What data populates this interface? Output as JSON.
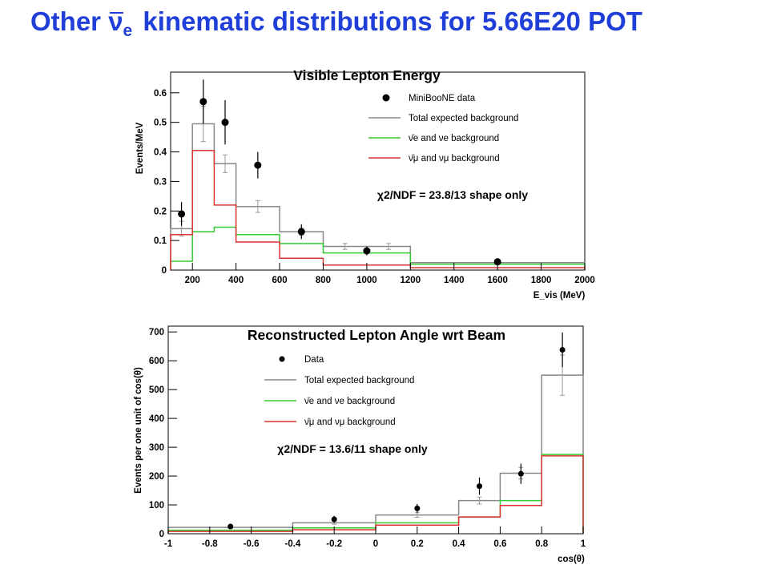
{
  "title": {
    "prefix": "Other ",
    "particle": "ν",
    "particle_sub": "e",
    "suffix": " kinematic distributions for 5.66E20 POT"
  },
  "chart_data": [
    {
      "type": "line",
      "title": "Visible Lepton Energy",
      "xlabel": "E_vis (MeV)",
      "ylabel": "Events/MeV",
      "xlim": [
        100,
        2000
      ],
      "ylim": [
        0,
        0.67
      ],
      "x_ticks": [
        200,
        400,
        600,
        800,
        1000,
        1200,
        1400,
        1600,
        1800,
        2000
      ],
      "y_ticks": [
        0,
        0.1,
        0.2,
        0.3,
        0.4,
        0.5,
        0.6
      ],
      "grid": false,
      "legend_position": "top-right",
      "annotation": "χ2/NDF = 23.8/13 shape only",
      "bin_edges": [
        100,
        200,
        300,
        400,
        600,
        800,
        1000,
        1200,
        2000
      ],
      "series": [
        {
          "name": "Total expected background",
          "style": "histogram",
          "color": "#888888",
          "values": [
            0.14,
            0.495,
            0.36,
            0.215,
            0.13,
            0.08,
            0.08,
            0.025
          ],
          "errors": [
            0.025,
            0.06,
            0.03,
            0.02,
            0.012,
            0.01,
            0.01,
            0.004
          ]
        },
        {
          "name": "ν̄e and νe background",
          "style": "histogram",
          "color": "#33cc33",
          "values": [
            0.03,
            0.13,
            0.145,
            0.12,
            0.09,
            0.058,
            0.058,
            0.02
          ]
        },
        {
          "name": "ν̄μ and νμ background",
          "style": "histogram",
          "color": "#dd3333",
          "values": [
            0.12,
            0.405,
            0.22,
            0.095,
            0.04,
            0.017,
            0.017,
            0.008
          ]
        },
        {
          "name": "MiniBooNE data",
          "style": "points",
          "color": "#000000",
          "x": [
            150,
            250,
            350,
            500,
            700,
            1000,
            1600
          ],
          "y": [
            0.19,
            0.57,
            0.5,
            0.355,
            0.13,
            0.065,
            0.028
          ],
          "errors": [
            0.04,
            0.075,
            0.075,
            0.045,
            0.025,
            0.015,
            0.004
          ]
        }
      ]
    },
    {
      "type": "line",
      "title": "Reconstructed Lepton Angle wrt Beam",
      "xlabel": "cos(θ)",
      "ylabel": "Events per one unit of cos(θ)",
      "xlim": [
        -1,
        1
      ],
      "ylim": [
        0,
        720
      ],
      "x_ticks": [
        -1,
        -0.8,
        -0.6,
        -0.4,
        -0.2,
        0,
        0.2,
        0.4,
        0.6,
        0.8,
        1
      ],
      "y_ticks": [
        0,
        100,
        200,
        300,
        400,
        500,
        600,
        700
      ],
      "grid": false,
      "legend_position": "top-center",
      "annotation": "χ2/NDF = 13.6/11 shape only",
      "bin_edges": [
        -1,
        -0.4,
        0,
        0.4,
        0.6,
        0.8,
        1
      ],
      "series": [
        {
          "name": "Total expected background",
          "style": "histogram",
          "color": "#888888",
          "values": [
            22,
            38,
            65,
            115,
            210,
            550
          ],
          "errors": [
            3,
            5,
            8,
            12,
            20,
            70
          ]
        },
        {
          "name": "ν̄e and νe background",
          "style": "histogram",
          "color": "#33cc33",
          "values": [
            12,
            20,
            38,
            58,
            115,
            275
          ]
        },
        {
          "name": "ν̄μ and νμ background",
          "style": "histogram",
          "color": "#dd3333",
          "values": [
            8,
            14,
            30,
            58,
            98,
            270
          ]
        },
        {
          "name": "Data",
          "style": "points",
          "color": "#000000",
          "x": [
            -0.7,
            -0.2,
            0.2,
            0.5,
            0.7,
            0.9
          ],
          "y": [
            25,
            50,
            88,
            165,
            208,
            638
          ],
          "errors": [
            4,
            12,
            15,
            30,
            35,
            60
          ]
        }
      ]
    }
  ]
}
